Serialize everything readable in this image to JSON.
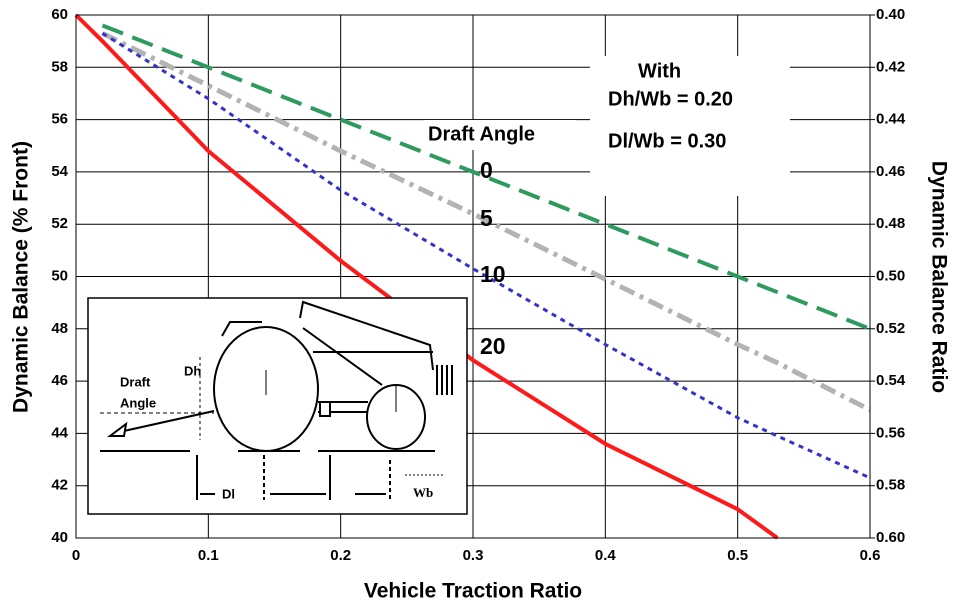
{
  "chart_data": {
    "type": "line",
    "x_label": "Vehicle Traction Ratio",
    "y_label": "Dynamic Balance (% Front)",
    "y2_label": "Dynamic Balance Ratio",
    "x": [
      0,
      0.02,
      0.1,
      0.2,
      0.3,
      0.4,
      0.5,
      0.53,
      0.6
    ],
    "series": [
      {
        "name": "0",
        "color": "#2e9a5e",
        "values": [
          null,
          59.6,
          58,
          56,
          54,
          52,
          50,
          49.4,
          48
        ]
      },
      {
        "name": "5",
        "color": "#b3b3b3",
        "values": [
          null,
          59.3,
          57.3,
          54.8,
          52.4,
          49.9,
          47.4,
          46.7,
          44.9
        ]
      },
      {
        "name": "10",
        "color": "#3333cc",
        "values": [
          null,
          59.3,
          56.8,
          53.3,
          50.3,
          47.4,
          44.6,
          43.9,
          42.3
        ]
      },
      {
        "name": "20",
        "color": "#ff1a1a",
        "values": [
          60,
          59,
          54.8,
          50.6,
          46.8,
          43.6,
          41.1,
          40,
          null
        ]
      }
    ],
    "xlim": [
      0,
      0.6
    ],
    "xticks": [
      0,
      0.1,
      0.2,
      0.3,
      0.4,
      0.5,
      0.6
    ],
    "ylim": [
      40,
      60
    ],
    "yticks": [
      40,
      42,
      44,
      46,
      48,
      50,
      52,
      54,
      56,
      58,
      60
    ],
    "y2lim": [
      0.6,
      0.4
    ],
    "y2ticks": [
      {
        "value": 0.4,
        "label": "0.40"
      },
      {
        "value": 0.42,
        "label": "0.42"
      },
      {
        "value": 0.44,
        "label": "0.44"
      },
      {
        "value": 0.46,
        "label": "0.46"
      },
      {
        "value": 0.48,
        "label": "0.48"
      },
      {
        "value": 0.5,
        "label": "0.50"
      },
      {
        "value": 0.52,
        "label": "0.52"
      },
      {
        "value": 0.54,
        "label": "0.54"
      },
      {
        "value": 0.56,
        "label": "0.56"
      },
      {
        "value": 0.58,
        "label": "0.58"
      },
      {
        "value": 0.6,
        "label": "0.60"
      }
    ],
    "grid": true,
    "legend_title": "Draft Angle",
    "annotations": [
      "With",
      "Dh/Wb = 0.20",
      "Dl/Wb = 0.30"
    ],
    "inset_labels": [
      "Draft",
      "Angle",
      "Dh",
      "Dl",
      "Wb"
    ]
  }
}
